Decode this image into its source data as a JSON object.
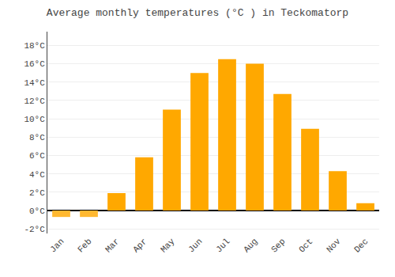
{
  "chart_data": {
    "type": "bar",
    "title": "Average monthly temperatures (°C ) in Teckomatorp",
    "categories": [
      "Jan",
      "Feb",
      "Mar",
      "Apr",
      "May",
      "Jun",
      "Jul",
      "Aug",
      "Sep",
      "Oct",
      "Nov",
      "Dec"
    ],
    "values": [
      -0.7,
      -0.7,
      1.9,
      5.8,
      11.0,
      15.0,
      16.5,
      16.0,
      12.7,
      8.9,
      4.3,
      0.8
    ],
    "colors": [
      "#FFB830",
      "#FFB830",
      "#FFA800",
      "#FFA800",
      "#FFA800",
      "#FFA800",
      "#FFA800",
      "#FFA800",
      "#FFA800",
      "#FFA800",
      "#FFA800",
      "#FFA800"
    ],
    "ylim": [
      -2.5,
      19.5
    ],
    "yticks": [
      {
        "value": -2,
        "label": "-2°C"
      },
      {
        "value": 0,
        "label": "0°C"
      },
      {
        "value": 2,
        "label": "2°C"
      },
      {
        "value": 4,
        "label": "4°C"
      },
      {
        "value": 6,
        "label": "6°C"
      },
      {
        "value": 8,
        "label": "8°C"
      },
      {
        "value": 10,
        "label": "10°C"
      },
      {
        "value": 12,
        "label": "12°C"
      },
      {
        "value": 14,
        "label": "14°C"
      },
      {
        "value": 16,
        "label": "16°C"
      },
      {
        "value": 18,
        "label": "18°C"
      }
    ],
    "grid": true
  }
}
